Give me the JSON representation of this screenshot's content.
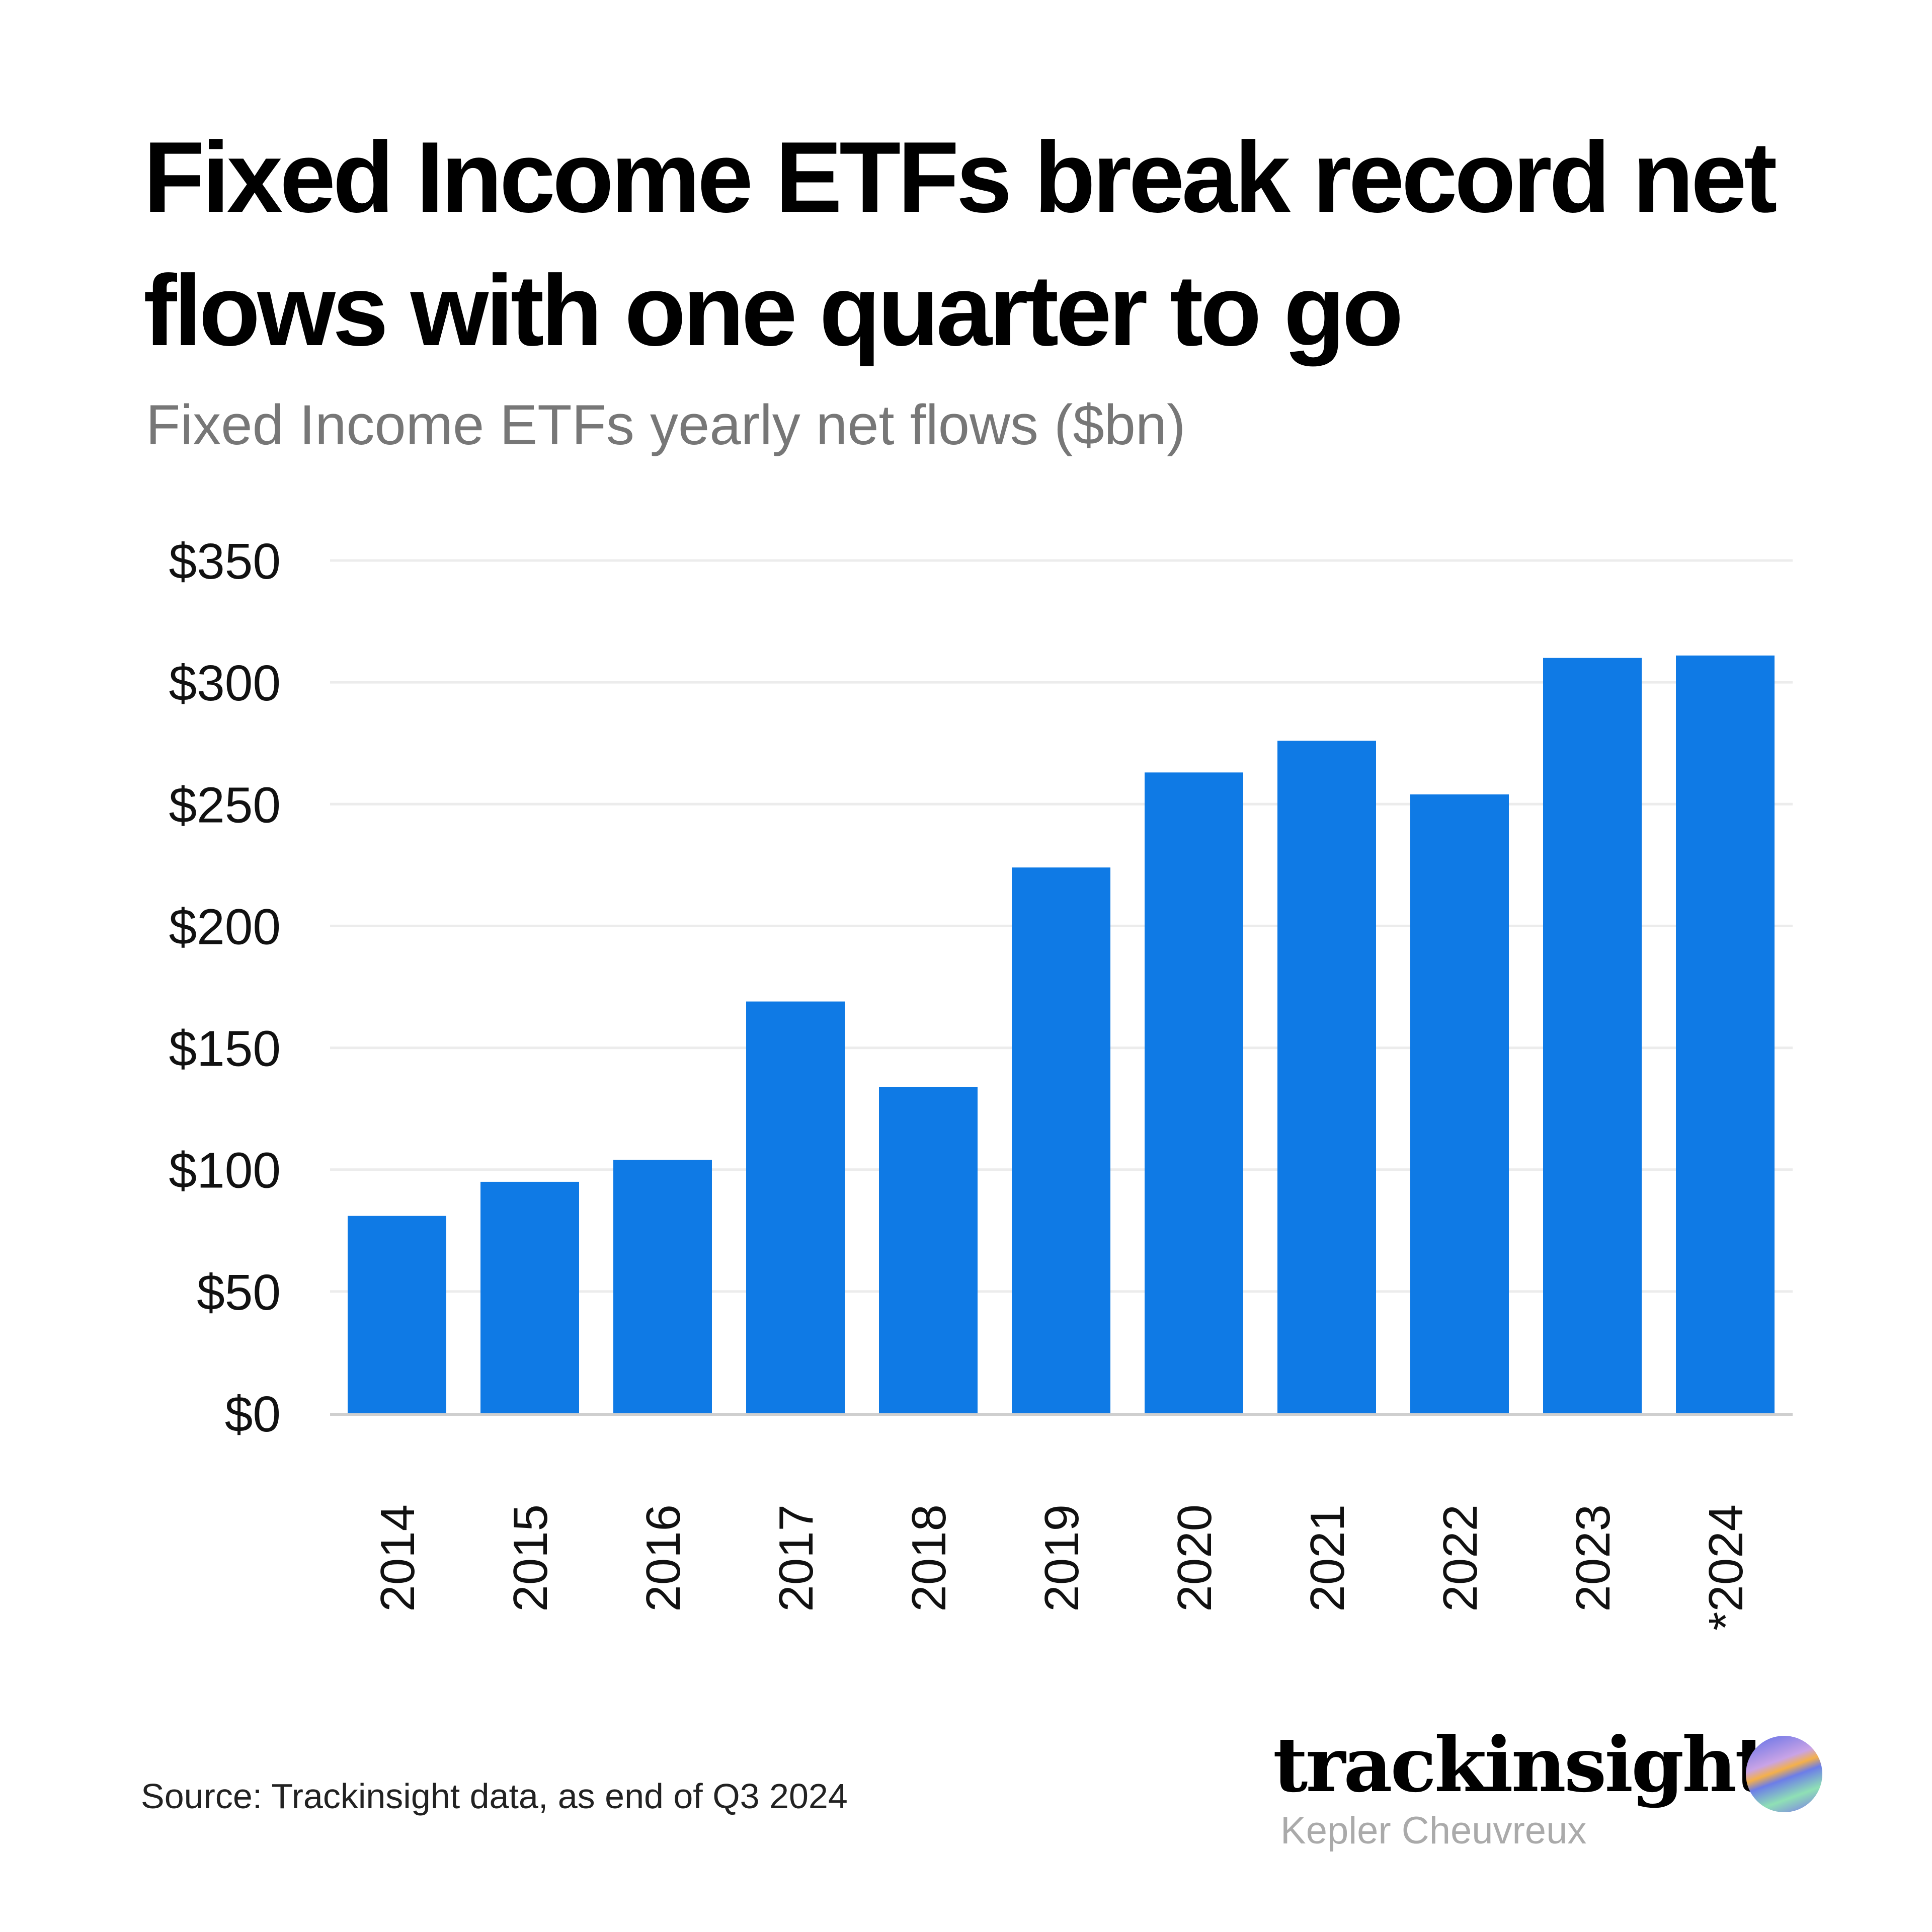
{
  "title": "Fixed Income ETFs break record net flows with one quarter to go",
  "subtitle": "Fixed Income ETFs yearly net flows ($bn)",
  "source": "Source: Trackinsight data, as end of Q3 2024",
  "brand": {
    "name": "trackinsight",
    "sub": "Kepler Cheuvreux"
  },
  "colors": {
    "bar": "#0f7ae5",
    "grid": "#ececec",
    "axis": "#cfcfcf"
  },
  "chart_data": {
    "type": "bar",
    "title": "Fixed Income ETFs yearly net flows ($bn)",
    "xlabel": "",
    "ylabel": "",
    "categories": [
      "2014",
      "2015",
      "2016",
      "2017",
      "2018",
      "2019",
      "2020",
      "2021",
      "2022",
      "2023",
      "*2024"
    ],
    "values": [
      81,
      95,
      104,
      169,
      134,
      224,
      263,
      276,
      254,
      310,
      311
    ],
    "ylim": [
      0,
      350
    ],
    "yticks": [
      0,
      50,
      100,
      150,
      200,
      250,
      300,
      350
    ],
    "ytick_labels": [
      "$0",
      "$50",
      "$100",
      "$150",
      "$200",
      "$250",
      "$300",
      "$350"
    ],
    "grid": true,
    "legend": "none"
  }
}
